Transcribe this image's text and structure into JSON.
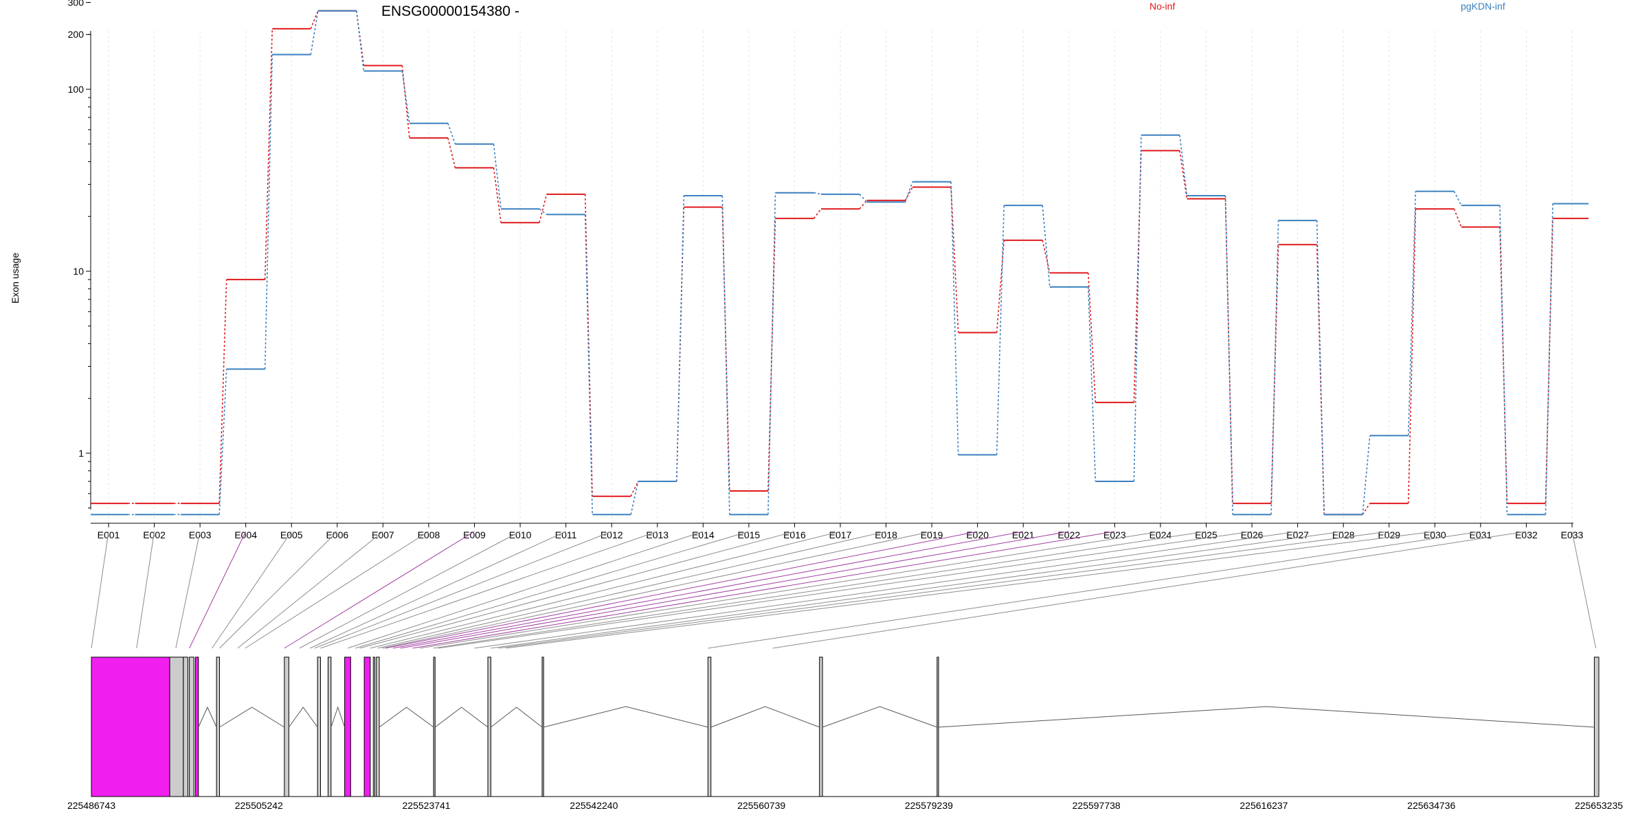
{
  "chart_data": {
    "type": "line",
    "title": "ENSG00000154380 -",
    "ylabel": "Exon usage",
    "y_scale": "log",
    "ylim": [
      0.46,
      400
    ],
    "yticks": [
      1,
      10,
      100,
      200,
      300
    ],
    "grid": "vertical dotted",
    "categories": [
      "E001",
      "E002",
      "E003",
      "E004",
      "E005",
      "E006",
      "E007",
      "E008",
      "E009",
      "E010",
      "E011",
      "E012",
      "E013",
      "E014",
      "E015",
      "E016",
      "E017",
      "E018",
      "E019",
      "E020",
      "E021",
      "E022",
      "E023",
      "E024",
      "E025",
      "E026",
      "E027",
      "E028",
      "E029",
      "E030",
      "E031",
      "E032",
      "E033"
    ],
    "series": [
      {
        "name": "No-inf",
        "color": "#e0191c",
        "values": [
          0.53,
          0.53,
          0.53,
          9.0,
          215,
          270,
          135,
          54,
          37,
          18.5,
          26.5,
          0.58,
          0.7,
          22.5,
          0.62,
          19.5,
          22,
          24.5,
          29,
          4.6,
          14.8,
          9.8,
          1.9,
          46,
          25,
          0.53,
          14,
          0.46,
          0.53,
          22,
          17.5,
          0.53,
          19.5
        ]
      },
      {
        "name": "pgKDN-inf",
        "color": "#3a7fbf",
        "values": [
          0.46,
          0.46,
          0.46,
          2.9,
          155,
          270,
          126,
          65,
          50,
          22,
          20.5,
          0.46,
          0.7,
          26,
          0.46,
          27,
          26.5,
          24,
          31,
          0.98,
          23,
          8.2,
          0.7,
          56,
          26,
          0.46,
          19,
          0.46,
          1.25,
          27.5,
          23,
          0.46,
          23.5
        ]
      }
    ],
    "gene_model": {
      "coordinate_labels": [
        "225486743",
        "225505242",
        "225523741",
        "225542240",
        "225560739",
        "225579239",
        "225597738",
        "225616237",
        "225634736",
        "225653235"
      ],
      "exon_bin_map": [
        0.0,
        0.03,
        0.056,
        0.065,
        0.08,
        0.085,
        0.097,
        0.102,
        0.128,
        0.138,
        0.145,
        0.148,
        0.152,
        0.17,
        0.175,
        0.178,
        0.185,
        0.19,
        0.193,
        0.195,
        0.2,
        0.205,
        0.213,
        0.218,
        0.227,
        0.23,
        0.254,
        0.265,
        0.27,
        0.275,
        0.409,
        0.452,
        0.468
      ],
      "highlighted_bins": [
        "E004",
        "E009",
        "E020",
        "E021",
        "E022",
        "E023"
      ],
      "highlight_color": "#f01fef",
      "exon_color": "#cccccc"
    }
  }
}
